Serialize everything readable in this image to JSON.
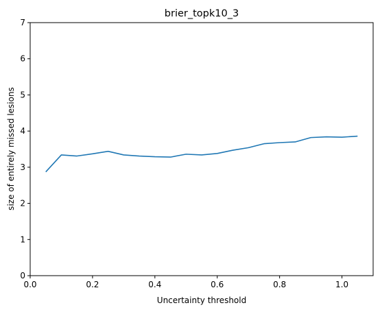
{
  "chart_data": {
    "type": "line",
    "title": "brier_topk10_3",
    "xlabel": "Uncertainty threshold",
    "ylabel": "size of entirely missed lesions",
    "xlim": [
      0.0,
      1.1
    ],
    "ylim": [
      0,
      7
    ],
    "xticks": [
      0.0,
      0.2,
      0.4,
      0.6,
      0.8,
      1.0
    ],
    "xtick_labels": [
      "0.0",
      "0.2",
      "0.4",
      "0.6",
      "0.8",
      "1.0"
    ],
    "yticks": [
      0,
      1,
      2,
      3,
      4,
      5,
      6,
      7
    ],
    "ytick_labels": [
      "0",
      "1",
      "2",
      "3",
      "4",
      "5",
      "6",
      "7"
    ],
    "grid": false,
    "series": [
      {
        "color": "#1f77b4",
        "x": [
          0.05,
          0.1,
          0.15,
          0.2,
          0.25,
          0.3,
          0.35,
          0.4,
          0.45,
          0.5,
          0.55,
          0.6,
          0.65,
          0.7,
          0.75,
          0.8,
          0.85,
          0.9,
          0.95,
          1.0,
          1.05
        ],
        "y": [
          2.87,
          3.34,
          3.31,
          3.37,
          3.44,
          3.34,
          3.31,
          3.29,
          3.28,
          3.36,
          3.34,
          3.38,
          3.47,
          3.54,
          3.65,
          3.68,
          3.7,
          3.82,
          3.84,
          3.83,
          3.86
        ]
      }
    ]
  }
}
